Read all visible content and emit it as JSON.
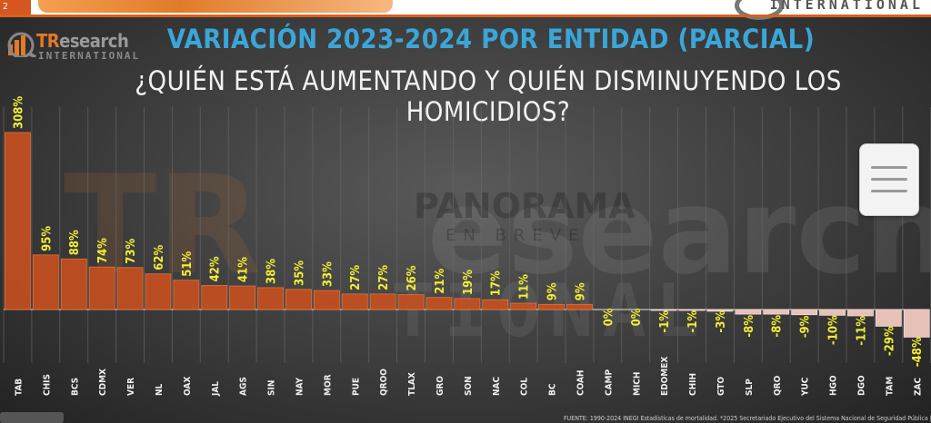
{
  "header": {
    "tab_label": "2",
    "right_brand": "INTERNATIONAL"
  },
  "logo": {
    "brand_tr": "TR",
    "brand_rest": "esearch",
    "subtitle": "INTERNATIONAL"
  },
  "title_line1": "VARIACIÓN 2023-2024 POR ENTIDAD (PARCIAL)",
  "title_line2": "¿QUIÉN ESTÁ AUMENTANDO Y QUIÉN DISMINUYENDO LOS HOMICIDIOS?",
  "watermark": {
    "main": "TR",
    "mid": "PANORAMA",
    "sub": "EN BREVE",
    "word": "esearch",
    "lower": "TIONAL"
  },
  "source_text": "FUENTE: 1990-2024 INEGI Estadísticas de mortalidad. *2025 Secretariado Ejecutivo del Sistema Nacional de Seguridad Pública |",
  "colors": {
    "bar_positive": "#c8501f",
    "bar_negative": "#f0c9c0",
    "value_label": "#f2ee36",
    "title_blue": "#3aa6d8",
    "accent_orange": "#e27a26"
  },
  "chart_data": {
    "type": "bar",
    "title": "VARIACIÓN 2023-2024 POR ENTIDAD (PARCIAL)",
    "subtitle": "¿QUIÉN ESTÁ AUMENTANDO Y QUIÉN DISMINUYENDO LOS HOMICIDIOS?",
    "xlabel": "",
    "ylabel": "",
    "categories": [
      "TAB",
      "CHIS",
      "BCS",
      "CDMX",
      "VER",
      "NL",
      "OAX",
      "JAL",
      "AGS",
      "SIN",
      "NAY",
      "MOR",
      "PUE",
      "QROO",
      "TLAX",
      "GRO",
      "SON",
      "NAC",
      "COL",
      "BC",
      "COAH",
      "CAMP",
      "MICH",
      "EDOMEX",
      "CHIH",
      "GTO",
      "SLP",
      "QRO",
      "YUC",
      "HGO",
      "DGO",
      "TAM",
      "ZAC"
    ],
    "values": [
      308,
      95,
      88,
      74,
      73,
      62,
      51,
      42,
      41,
      38,
      35,
      33,
      27,
      27,
      26,
      21,
      19,
      17,
      11,
      9,
      9,
      0,
      0,
      -1,
      -1,
      -3,
      -8,
      -8,
      -9,
      -10,
      -11,
      -29,
      -48
    ],
    "value_labels": [
      "308%",
      "95%",
      "88%",
      "74%",
      "73%",
      "62%",
      "51%",
      "42%",
      "41%",
      "38%",
      "35%",
      "33%",
      "27%",
      "27%",
      "26%",
      "21%",
      "19%",
      "17%",
      "11%",
      "9%",
      "9%",
      "0%",
      "0%",
      "-1%",
      "-1%",
      "-3%",
      "-8%",
      "-8%",
      "-9%",
      "-10%",
      "-11%",
      "-29%",
      "-48%"
    ],
    "unit": "%",
    "grid": true,
    "legend": "none"
  }
}
